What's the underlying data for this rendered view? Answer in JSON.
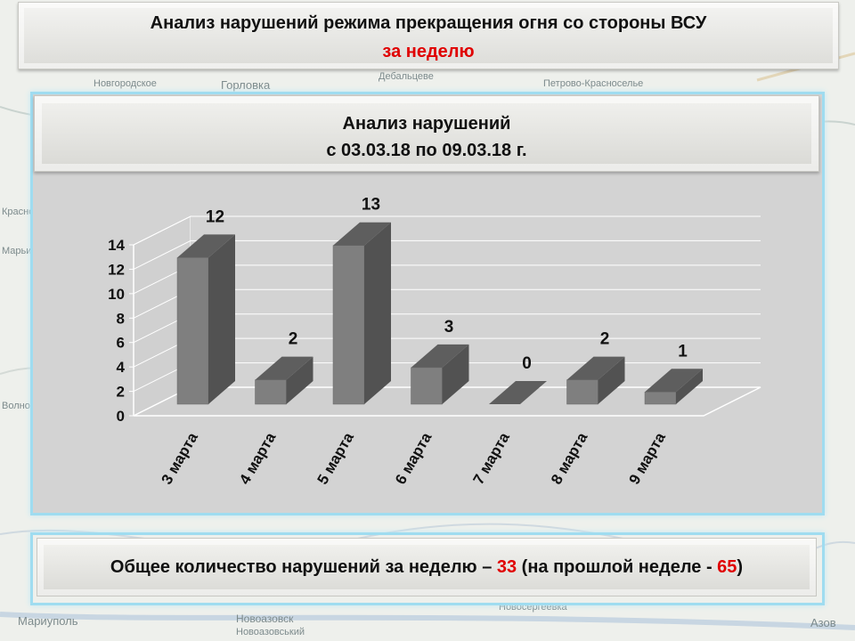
{
  "header": {
    "title": "Анализ нарушений режима прекращения огня со стороны ВСУ",
    "subtitle": "за неделю"
  },
  "map_labels": [
    "Новгородское",
    "Горловка",
    "Дебальцеве",
    "Петрово-Красноселье",
    "Краснополье",
    "Марьинка",
    "Волноваха",
    "Новоазовск",
    "Мариуполь",
    "Азов",
    "Новоазовський",
    "Новосергеевка"
  ],
  "chart_panel": {
    "title_line1": "Анализ нарушений",
    "title_line2": "с 03.03.18 по 09.03.18 г."
  },
  "summary": {
    "prefix": "Общее количество нарушений за неделю – ",
    "current": "33",
    "middle": " (на прошлой неделе - ",
    "previous": "65",
    "suffix": ")"
  },
  "colors": {
    "bar_front": "#7f7f7f",
    "bar_side": "#525252",
    "bar_top": "#5e5e5e",
    "accent_red": "#e00000",
    "frame_blue": "#9fdcf0"
  },
  "chart_data": {
    "type": "bar",
    "three_d": true,
    "categories": [
      "3 марта",
      "4 марта",
      "5 марта",
      "6 марта",
      "7 марта",
      "8 марта",
      "9 марта"
    ],
    "values": [
      12,
      2,
      13,
      3,
      0,
      2,
      1
    ],
    "data_labels": [
      "12",
      "2",
      "13",
      "3",
      "0",
      "2",
      "1"
    ],
    "ylim": [
      0,
      14
    ],
    "yticks": [
      0,
      2,
      4,
      6,
      8,
      10,
      12,
      14
    ],
    "title": "",
    "xlabel": "",
    "ylabel": "",
    "grid": true,
    "legend": false
  }
}
